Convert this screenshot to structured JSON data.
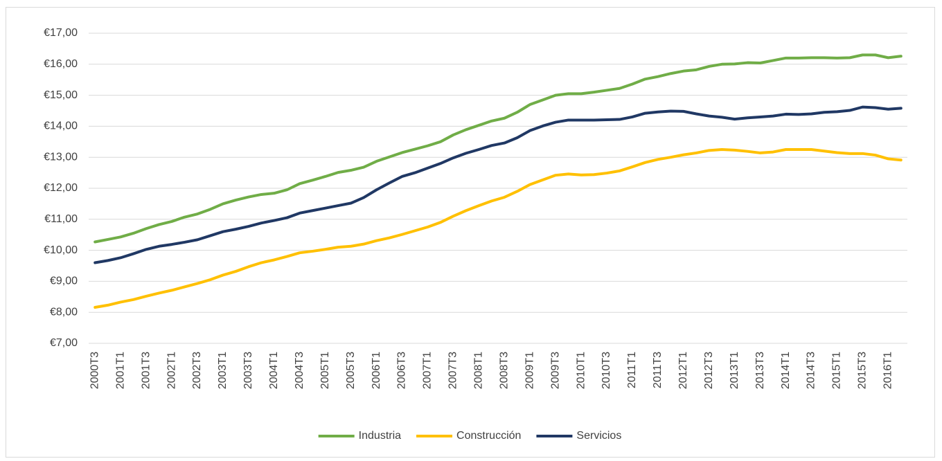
{
  "chart_data": {
    "type": "line",
    "categories": [
      "2000T3",
      null,
      "2001T1",
      null,
      "2001T3",
      null,
      "2002T1",
      null,
      "2002T3",
      null,
      "2003T1",
      null,
      "2003T3",
      null,
      "2004T1",
      null,
      "2004T3",
      null,
      "2005T1",
      null,
      "2005T3",
      null,
      "2006T1",
      null,
      "2006T3",
      null,
      "2007T1",
      null,
      "2007T3",
      null,
      "2008T1",
      null,
      "2008T3",
      null,
      "2009T1",
      null,
      "2009T3",
      null,
      "2010T1",
      null,
      "2010T3",
      null,
      "2011T1",
      null,
      "2011T3",
      null,
      "2012T1",
      null,
      "2012T3",
      null,
      "2013T1",
      null,
      "2013T3",
      null,
      "2014T1",
      null,
      "2014T3",
      null,
      "2015T1",
      null,
      "2015T3",
      null,
      "2016T1",
      null
    ],
    "series": [
      {
        "name": "Industria",
        "color": "#70ad47",
        "values": [
          10.27,
          10.35,
          10.43,
          10.55,
          10.7,
          10.83,
          10.93,
          11.07,
          11.17,
          11.32,
          11.5,
          11.62,
          11.72,
          11.8,
          11.84,
          11.95,
          12.15,
          12.26,
          12.38,
          12.51,
          12.58,
          12.68,
          12.87,
          13.01,
          13.15,
          13.26,
          13.37,
          13.5,
          13.72,
          13.89,
          14.03,
          14.17,
          14.26,
          14.45,
          14.7,
          14.85,
          15.0,
          15.05,
          15.05,
          15.1,
          15.16,
          15.22,
          15.36,
          15.52,
          15.6,
          15.7,
          15.78,
          15.82,
          15.93,
          16.0,
          16.01,
          16.05,
          16.04,
          16.12,
          16.2,
          16.2,
          16.21,
          16.21,
          16.2,
          16.21,
          16.3,
          16.3,
          16.21,
          16.26
        ]
      },
      {
        "name": "Construcción",
        "color": "#ffc000",
        "values": [
          8.16,
          8.23,
          8.33,
          8.41,
          8.52,
          8.62,
          8.71,
          8.82,
          8.93,
          9.05,
          9.2,
          9.32,
          9.47,
          9.6,
          9.69,
          9.8,
          9.92,
          9.97,
          10.03,
          10.1,
          10.13,
          10.2,
          10.31,
          10.4,
          10.51,
          10.63,
          10.75,
          10.9,
          11.1,
          11.28,
          11.44,
          11.59,
          11.71,
          11.9,
          12.12,
          12.27,
          12.42,
          12.46,
          12.43,
          12.44,
          12.49,
          12.56,
          12.69,
          12.83,
          12.93,
          13.0,
          13.08,
          13.14,
          13.22,
          13.25,
          13.23,
          13.19,
          13.14,
          13.17,
          13.25,
          13.25,
          13.25,
          13.2,
          13.15,
          13.12,
          13.12,
          13.07,
          12.95,
          12.91
        ]
      },
      {
        "name": "Servicios",
        "color": "#203864",
        "values": [
          9.6,
          9.67,
          9.76,
          9.89,
          10.03,
          10.13,
          10.19,
          10.26,
          10.34,
          10.47,
          10.6,
          10.68,
          10.77,
          10.88,
          10.96,
          11.05,
          11.2,
          11.28,
          11.36,
          11.44,
          11.52,
          11.7,
          11.95,
          12.17,
          12.38,
          12.5,
          12.65,
          12.8,
          12.98,
          13.13,
          13.25,
          13.38,
          13.46,
          13.63,
          13.86,
          14.01,
          14.13,
          14.2,
          14.2,
          14.2,
          14.21,
          14.22,
          14.3,
          14.42,
          14.46,
          14.49,
          14.48,
          14.4,
          14.33,
          14.29,
          14.23,
          14.27,
          14.3,
          14.33,
          14.39,
          14.38,
          14.4,
          14.45,
          14.47,
          14.51,
          14.62,
          14.6,
          14.55,
          14.58
        ]
      }
    ],
    "ylim": [
      7,
      17
    ],
    "yticks": [
      {
        "value": 7,
        "label": "€7,00"
      },
      {
        "value": 8,
        "label": "€8,00"
      },
      {
        "value": 9,
        "label": "€9,00"
      },
      {
        "value": 10,
        "label": "€10,00"
      },
      {
        "value": 11,
        "label": "€11,00"
      },
      {
        "value": 12,
        "label": "€12,00"
      },
      {
        "value": 13,
        "label": "€13,00"
      },
      {
        "value": 14,
        "label": "€14,00"
      },
      {
        "value": 15,
        "label": "€15,00"
      },
      {
        "value": 16,
        "label": "€16,00"
      },
      {
        "value": 17,
        "label": "€17,00"
      }
    ],
    "grid": true,
    "legend": "bottom"
  }
}
